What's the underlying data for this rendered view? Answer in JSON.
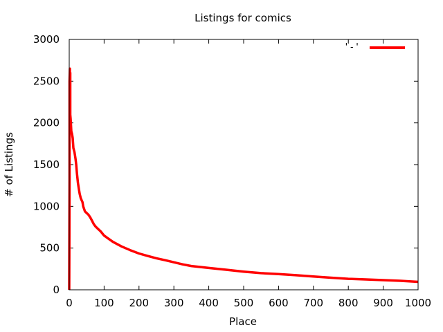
{
  "chart_data": {
    "type": "line",
    "title": "Listings for comics",
    "xlabel": "Place",
    "ylabel": "# of Listings",
    "xlim": [
      0,
      1000
    ],
    "ylim": [
      0,
      3000
    ],
    "xticks": [
      0,
      100,
      200,
      300,
      400,
      500,
      600,
      700,
      800,
      900,
      1000
    ],
    "yticks": [
      0,
      500,
      1000,
      1500,
      2000,
      2500,
      3000
    ],
    "grid": false,
    "legend_position": "top-right",
    "series": [
      {
        "name": "'-'",
        "color": "#ff0000",
        "x": [
          0,
          1,
          1,
          2,
          2,
          3,
          3,
          4,
          5,
          6,
          8,
          10,
          12,
          15,
          18,
          20,
          22,
          25,
          28,
          30,
          33,
          35,
          38,
          40,
          45,
          50,
          55,
          60,
          65,
          70,
          75,
          80,
          90,
          100,
          110,
          125,
          150,
          175,
          200,
          225,
          250,
          275,
          300,
          325,
          350,
          400,
          450,
          500,
          550,
          600,
          650,
          700,
          750,
          800,
          850,
          900,
          950,
          1000
        ],
        "y": [
          0,
          1330,
          2500,
          2650,
          2400,
          2600,
          2100,
          2050,
          1980,
          1900,
          1870,
          1820,
          1700,
          1650,
          1570,
          1500,
          1400,
          1280,
          1200,
          1150,
          1100,
          1080,
          1050,
          1000,
          940,
          920,
          900,
          870,
          830,
          790,
          760,
          740,
          700,
          650,
          620,
          575,
          520,
          475,
          435,
          405,
          378,
          355,
          330,
          305,
          285,
          262,
          240,
          218,
          200,
          188,
          175,
          160,
          145,
          132,
          124,
          116,
          108,
          95
        ]
      }
    ]
  }
}
